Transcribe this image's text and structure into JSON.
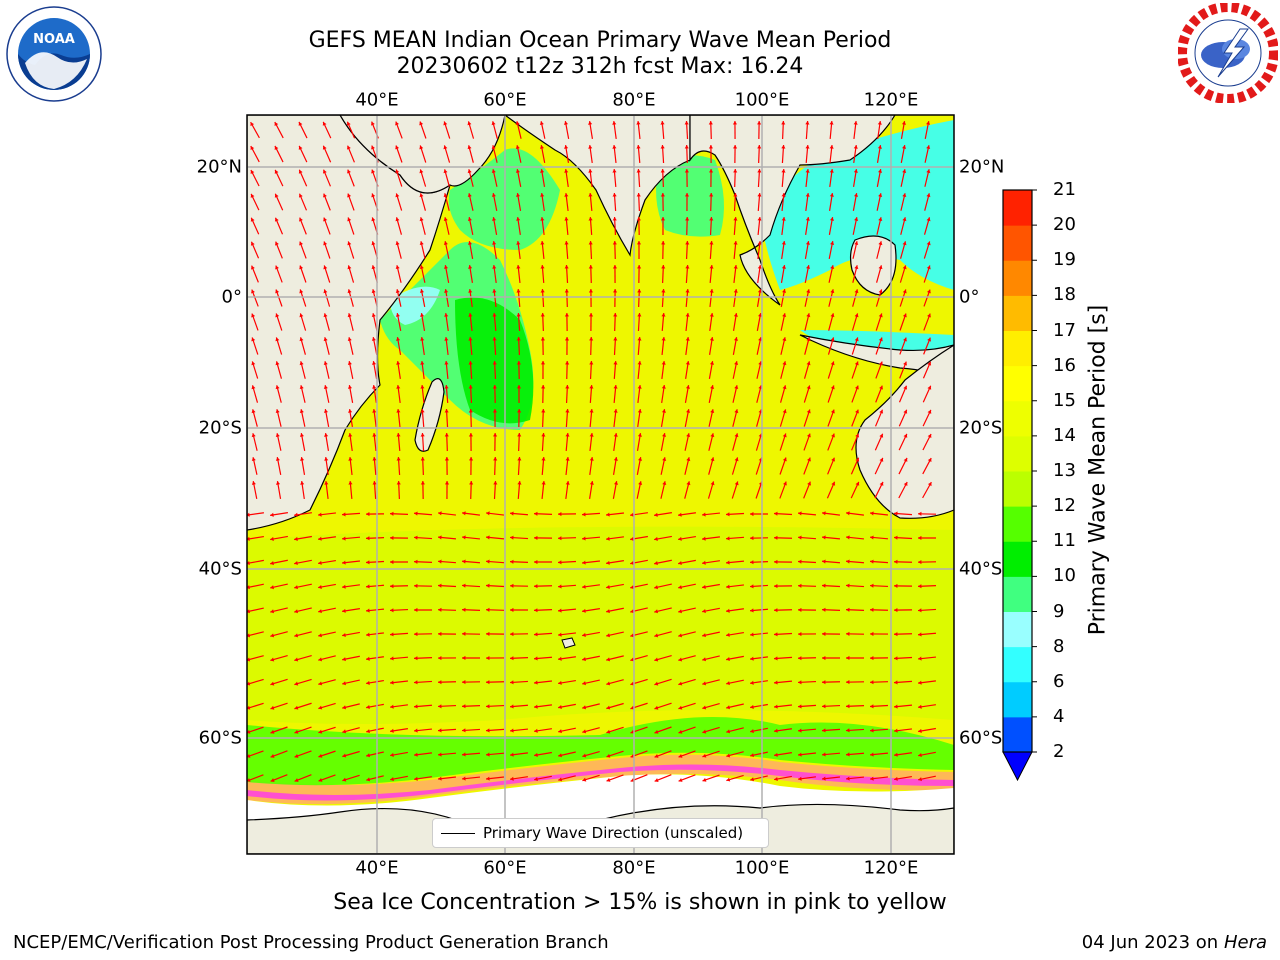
{
  "header": {
    "title_line1": "GEFS MEAN Indian Ocean Primary Wave Mean Period",
    "title_line2": "20230602 t12z 312h fcst   Max: 16.24"
  },
  "logos": {
    "noaa_text": "NOAA",
    "noaa_ring": "NATIONAL OCEANIC AND ATMOSPHERIC ADMINISTRATION · U.S. DEPARTMENT OF COMMERCE",
    "nws_ring": "NATIONAL WEATHER SERVICE"
  },
  "map": {
    "lon_ticks": [
      "40°E",
      "60°E",
      "80°E",
      "100°E",
      "120°E"
    ],
    "lat_ticks": [
      "20°N",
      "0°",
      "20°S",
      "40°S",
      "60°S"
    ],
    "legend_label": "Primary Wave Direction (unscaled)",
    "colors": {
      "land": "#eeeddf",
      "ice_free_ocean": "#f2f200",
      "grid": "#b0b0b0",
      "arrows": "#ff0000"
    }
  },
  "colorbar": {
    "label": "Primary Wave Mean Period [s]",
    "ticks": [
      "2",
      "4",
      "6",
      "8",
      "9",
      "10",
      "11",
      "12",
      "13",
      "14",
      "15",
      "16",
      "17",
      "18",
      "19",
      "20",
      "21"
    ],
    "colors": [
      "#0050ff",
      "#00ccff",
      "#33ffff",
      "#99ffff",
      "#40ff80",
      "#00ee00",
      "#55ff00",
      "#bbff00",
      "#ddff00",
      "#eeff00",
      "#ffff00",
      "#ffee00",
      "#ffbb00",
      "#ff8800",
      "#ff5500",
      "#ff2200"
    ],
    "extend_color": "#0000ff"
  },
  "note": "Sea Ice Concentration > 15% is shown in pink to yellow",
  "footer": {
    "left": "NCEP/EMC/Verification Post Processing Product Generation Branch",
    "right_date": "04 Jun 2023 on",
    "right_host": "Hera"
  }
}
